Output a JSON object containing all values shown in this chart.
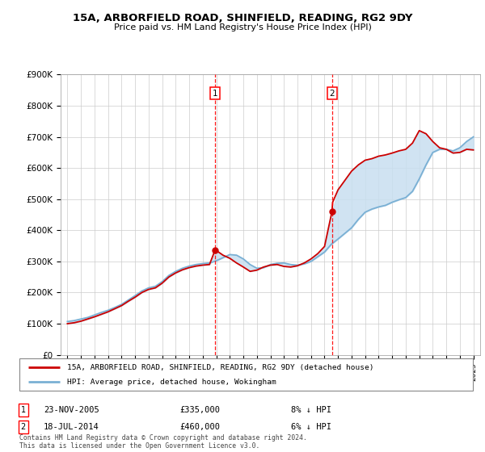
{
  "title": "15A, ARBORFIELD ROAD, SHINFIELD, READING, RG2 9DY",
  "subtitle": "Price paid vs. HM Land Registry's House Price Index (HPI)",
  "ylabel_ticks": [
    "£0",
    "£100K",
    "£200K",
    "£300K",
    "£400K",
    "£500K",
    "£600K",
    "£700K",
    "£800K",
    "£900K"
  ],
  "ytick_vals": [
    0,
    100000,
    200000,
    300000,
    400000,
    500000,
    600000,
    700000,
    800000,
    900000
  ],
  "ylim": [
    0,
    900000
  ],
  "sale1_x": 2005.9,
  "sale1_price": 335000,
  "sale2_x": 2014.55,
  "sale2_price": 460000,
  "legend_line1": "15A, ARBORFIELD ROAD, SHINFIELD, READING, RG2 9DY (detached house)",
  "legend_line2": "HPI: Average price, detached house, Wokingham",
  "footer": "Contains HM Land Registry data © Crown copyright and database right 2024.\nThis data is licensed under the Open Government Licence v3.0.",
  "line_color_red": "#cc0000",
  "line_color_blue": "#7ab0d4",
  "fill_color": "#c8dff0",
  "hpi_x": [
    1995.0,
    1995.5,
    1996.0,
    1996.5,
    1997.0,
    1997.5,
    1998.0,
    1998.5,
    1999.0,
    1999.5,
    2000.0,
    2000.5,
    2001.0,
    2001.5,
    2002.0,
    2002.5,
    2003.0,
    2003.5,
    2004.0,
    2004.5,
    2005.0,
    2005.5,
    2006.0,
    2006.5,
    2007.0,
    2007.5,
    2008.0,
    2008.5,
    2009.0,
    2009.5,
    2010.0,
    2010.5,
    2011.0,
    2011.5,
    2012.0,
    2012.5,
    2013.0,
    2013.5,
    2014.0,
    2014.5,
    2015.0,
    2015.5,
    2016.0,
    2016.5,
    2017.0,
    2017.5,
    2018.0,
    2018.5,
    2019.0,
    2019.5,
    2020.0,
    2020.5,
    2021.0,
    2021.5,
    2022.0,
    2022.5,
    2023.0,
    2023.5,
    2024.0,
    2024.5,
    2025.0
  ],
  "hpi_values": [
    107000,
    110000,
    115000,
    120000,
    128000,
    136000,
    143000,
    152000,
    162000,
    176000,
    190000,
    205000,
    215000,
    220000,
    235000,
    255000,
    268000,
    278000,
    285000,
    290000,
    293000,
    295000,
    302000,
    312000,
    322000,
    320000,
    308000,
    290000,
    278000,
    280000,
    290000,
    294000,
    295000,
    290000,
    288000,
    292000,
    300000,
    315000,
    330000,
    355000,
    372000,
    390000,
    408000,
    435000,
    458000,
    468000,
    475000,
    480000,
    490000,
    498000,
    505000,
    525000,
    565000,
    610000,
    650000,
    660000,
    660000,
    655000,
    665000,
    685000,
    700000
  ],
  "red_x": [
    1995.0,
    1995.5,
    1996.0,
    1996.5,
    1997.0,
    1997.5,
    1998.0,
    1998.5,
    1999.0,
    1999.5,
    2000.0,
    2000.5,
    2001.0,
    2001.5,
    2002.0,
    2002.5,
    2003.0,
    2003.5,
    2004.0,
    2004.5,
    2005.0,
    2005.5,
    2005.9,
    2006.0,
    2006.5,
    2007.0,
    2007.5,
    2008.0,
    2008.5,
    2009.0,
    2009.5,
    2010.0,
    2010.5,
    2011.0,
    2011.5,
    2012.0,
    2012.5,
    2013.0,
    2013.5,
    2014.0,
    2014.55,
    2014.6,
    2015.0,
    2015.5,
    2016.0,
    2016.5,
    2017.0,
    2017.5,
    2018.0,
    2018.5,
    2019.0,
    2019.5,
    2020.0,
    2020.5,
    2021.0,
    2021.5,
    2022.0,
    2022.5,
    2023.0,
    2023.5,
    2024.0,
    2024.5,
    2025.0
  ],
  "red_values": [
    100000,
    103000,
    108000,
    115000,
    122000,
    130000,
    138000,
    148000,
    158000,
    172000,
    185000,
    200000,
    210000,
    215000,
    230000,
    250000,
    263000,
    273000,
    280000,
    285000,
    288000,
    290000,
    335000,
    335000,
    320000,
    310000,
    295000,
    282000,
    268000,
    272000,
    282000,
    288000,
    290000,
    284000,
    282000,
    286000,
    295000,
    308000,
    325000,
    348000,
    460000,
    490000,
    530000,
    560000,
    590000,
    610000,
    625000,
    630000,
    638000,
    642000,
    648000,
    655000,
    660000,
    680000,
    720000,
    710000,
    685000,
    665000,
    660000,
    648000,
    650000,
    660000,
    658000
  ]
}
